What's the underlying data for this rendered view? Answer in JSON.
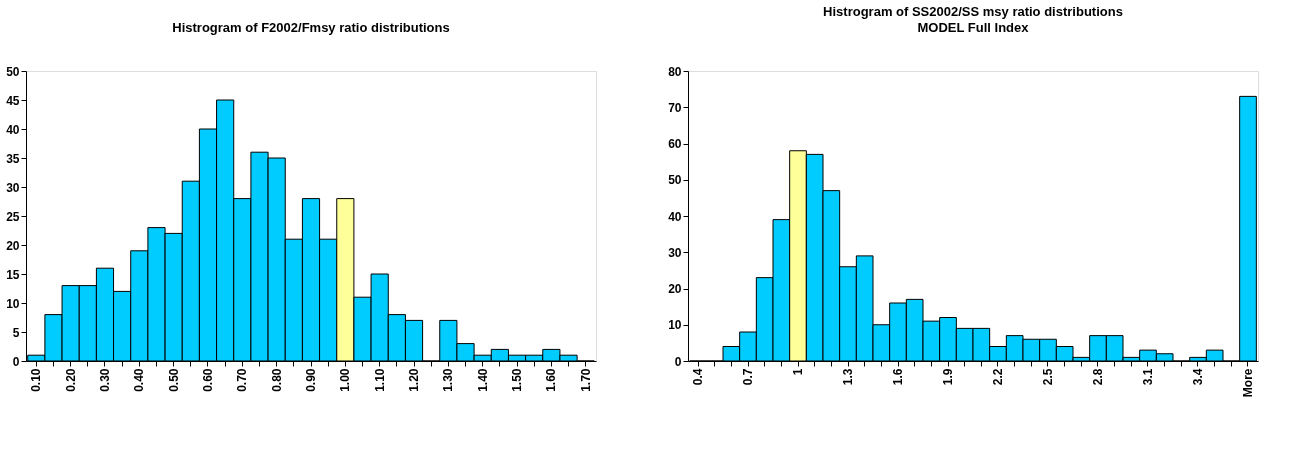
{
  "chart_data": [
    {
      "type": "bar",
      "title": "Histrogram of F2002/Fmsy ratio distributions",
      "categories": [
        "0.10",
        null,
        "0.20",
        null,
        "0.30",
        null,
        "0.40",
        null,
        "0.50",
        null,
        "0.60",
        null,
        "0.70",
        null,
        "0.80",
        null,
        "0.90",
        null,
        "1.00",
        null,
        "1.10",
        null,
        "1.20",
        null,
        "1.30",
        null,
        "1.40",
        null,
        "1.50",
        null,
        "1.60",
        null,
        "1.70"
      ],
      "values": [
        1,
        8,
        13,
        13,
        16,
        12,
        19,
        23,
        22,
        31,
        40,
        45,
        28,
        36,
        35,
        21,
        28,
        21,
        28,
        11,
        15,
        8,
        7,
        0,
        7,
        3,
        1,
        2,
        1,
        1,
        2,
        1,
        0
      ],
      "colors": [
        "#00ccff",
        "#00ccff",
        "#00ccff",
        "#00ccff",
        "#00ccff",
        "#00ccff",
        "#00ccff",
        "#00ccff",
        "#00ccff",
        "#00ccff",
        "#00ccff",
        "#00ccff",
        "#00ccff",
        "#00ccff",
        "#00ccff",
        "#00ccff",
        "#00ccff",
        "#00ccff",
        "#ffff99",
        "#00ccff",
        "#00ccff",
        "#00ccff",
        "#00ccff",
        "#00ccff",
        "#00ccff",
        "#00ccff",
        "#00ccff",
        "#00ccff",
        "#00ccff",
        "#00ccff",
        "#00ccff",
        "#00ccff",
        "#00ccff"
      ],
      "ylim": [
        0,
        50
      ],
      "yticks": [
        0,
        5,
        10,
        15,
        20,
        25,
        30,
        35,
        40,
        45,
        50
      ]
    },
    {
      "type": "bar",
      "title": "Histrogram of SS2002/SS msy ratio distributions",
      "subtitle": "MODEL Full Index",
      "categories": [
        "0.4",
        null,
        null,
        "0.7",
        null,
        null,
        "1",
        null,
        null,
        "1.3",
        null,
        null,
        "1.6",
        null,
        null,
        "1.9",
        null,
        null,
        "2.2",
        null,
        null,
        "2.5",
        null,
        null,
        "2.8",
        null,
        null,
        "3.1",
        null,
        null,
        "3.4",
        null,
        null,
        "More"
      ],
      "values": [
        0,
        0,
        4,
        8,
        23,
        39,
        58,
        57,
        47,
        26,
        29,
        10,
        16,
        17,
        11,
        12,
        9,
        9,
        4,
        7,
        6,
        6,
        4,
        1,
        7,
        7,
        1,
        3,
        2,
        0,
        1,
        3,
        0,
        73
      ],
      "colors": [
        "#00ccff",
        "#00ccff",
        "#00ccff",
        "#00ccff",
        "#00ccff",
        "#00ccff",
        "#ffff99",
        "#00ccff",
        "#00ccff",
        "#00ccff",
        "#00ccff",
        "#00ccff",
        "#00ccff",
        "#00ccff",
        "#00ccff",
        "#00ccff",
        "#00ccff",
        "#00ccff",
        "#00ccff",
        "#00ccff",
        "#00ccff",
        "#00ccff",
        "#00ccff",
        "#00ccff",
        "#00ccff",
        "#00ccff",
        "#00ccff",
        "#00ccff",
        "#00ccff",
        "#00ccff",
        "#00ccff",
        "#00ccff",
        "#00ccff",
        "#00ccff"
      ],
      "ylim": [
        0,
        80
      ],
      "yticks": [
        0,
        10,
        20,
        30,
        40,
        50,
        60,
        70,
        80
      ]
    }
  ]
}
